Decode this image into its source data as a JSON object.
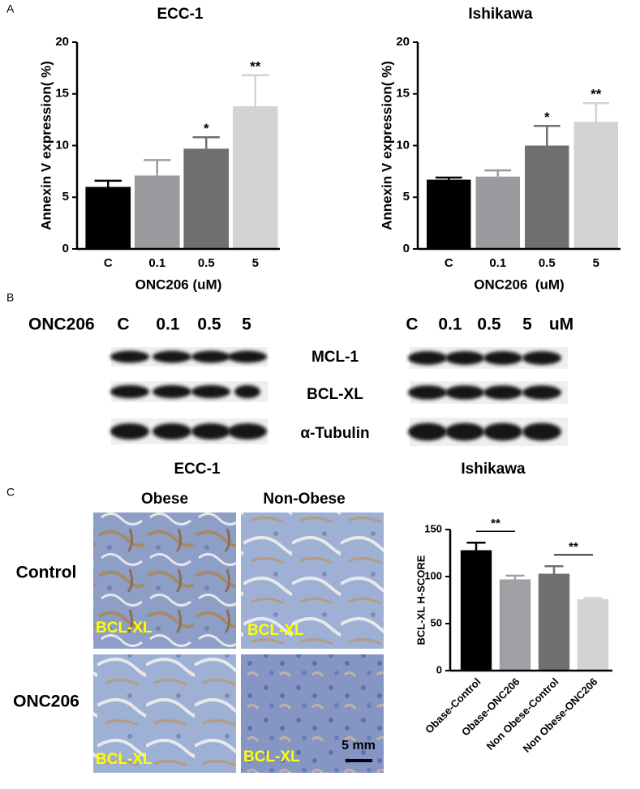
{
  "panel_labels": [
    "A",
    "B",
    "C"
  ],
  "chart_data": [
    {
      "type": "bar",
      "title": "ECC-1",
      "xlabel": "ONC206 (uM)",
      "ylabel": "Annexin V expression( %)",
      "categories": [
        "C",
        "0.1",
        "0.5",
        "5"
      ],
      "values": [
        6.0,
        7.1,
        9.7,
        13.8
      ],
      "errors": [
        0.6,
        1.5,
        1.1,
        3.0
      ],
      "colors": [
        "#000000",
        "#9b9b9f",
        "#6f6f6f",
        "#d3d3d3"
      ],
      "annotations": [
        null,
        null,
        "*",
        "**"
      ],
      "ylim": [
        0,
        20
      ],
      "yticks": [
        0,
        5,
        10,
        15,
        20
      ]
    },
    {
      "type": "bar",
      "title": "Ishikawa",
      "xlabel": "ONC206  (uM)",
      "ylabel": "Annexin V expression( %)",
      "categories": [
        "C",
        "0.1",
        "0.5",
        "5"
      ],
      "values": [
        6.7,
        7.0,
        10.0,
        12.3
      ],
      "errors": [
        0.2,
        0.6,
        1.9,
        1.8
      ],
      "colors": [
        "#000000",
        "#9b9b9f",
        "#6f6f6f",
        "#d3d3d3"
      ],
      "annotations": [
        null,
        null,
        "*",
        "**"
      ],
      "ylim": [
        0,
        20
      ],
      "yticks": [
        0,
        5,
        10,
        15,
        20
      ]
    },
    {
      "type": "bar",
      "ylabel": "BCL-XL H-SCORE",
      "categories": [
        "Obase-Control",
        "Obase-ONC206",
        "Non Obese-Control",
        "Non Obese-ONC206"
      ],
      "values": [
        128,
        97,
        103,
        76
      ],
      "errors": [
        8,
        4,
        8,
        1
      ],
      "colors": [
        "#000000",
        "#a0a0a4",
        "#707070",
        "#d3d3d3"
      ],
      "comparisons": [
        {
          "from": 0,
          "to": 1,
          "label": "**"
        },
        {
          "from": 2,
          "to": 3,
          "label": "**"
        }
      ],
      "ylim": [
        0,
        150
      ],
      "yticks": [
        0,
        50,
        100,
        150
      ]
    }
  ],
  "blot": {
    "treatment_label": "ONC206",
    "left": {
      "lanes": [
        "C",
        "0.1",
        "0.5",
        "5"
      ],
      "cell_line": "ECC-1"
    },
    "right": {
      "lanes": [
        "C",
        "0.1",
        "0.5",
        "5",
        "uM"
      ],
      "cell_line": "Ishikawa"
    },
    "proteins": [
      "MCL-1",
      "BCL-XL",
      "α-Tubulin"
    ]
  },
  "histology": {
    "columns": [
      "Obese",
      "Non-Obese"
    ],
    "rows": [
      "Control",
      "ONC206"
    ],
    "stain": "BCL-XL",
    "scale_bar": "5 mm"
  }
}
